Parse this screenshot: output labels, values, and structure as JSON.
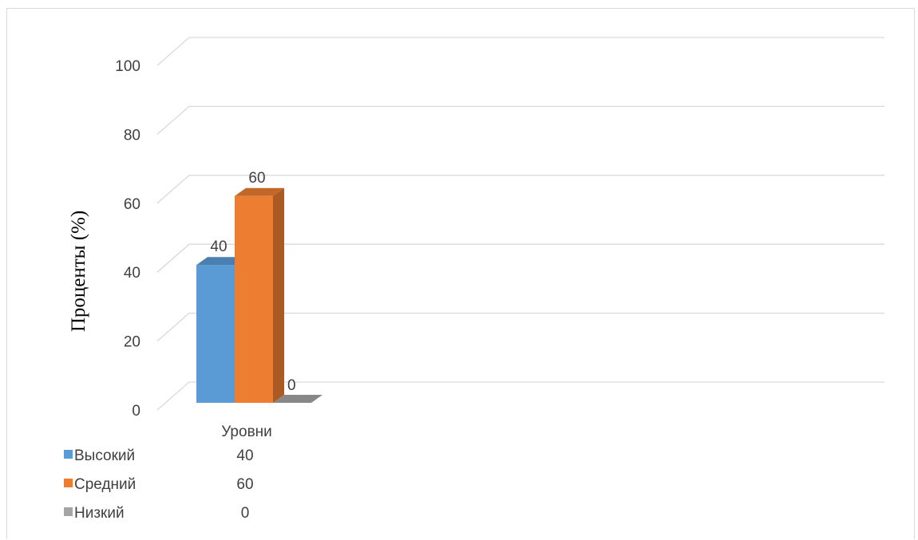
{
  "chart_data": {
    "type": "bar",
    "style": "3d-clustered-column",
    "title": "",
    "xlabel": "Уровни",
    "ylabel": "Проценты (%)",
    "ylim": [
      0,
      100
    ],
    "yticks": [
      0,
      20,
      40,
      60,
      80,
      100
    ],
    "grid": true,
    "categories": [
      "Уровни"
    ],
    "series": [
      {
        "name": "Высокий",
        "values": [
          40
        ],
        "color": "#5b9bd5"
      },
      {
        "name": "Средний",
        "values": [
          60
        ],
        "color": "#ed7d31"
      },
      {
        "name": "Низкий",
        "values": [
          0
        ],
        "color": "#a5a5a5"
      }
    ],
    "data_labels": [
      "40",
      "60",
      "0"
    ],
    "legend": {
      "placement": "bottom-left-data-table",
      "rows": [
        {
          "name": "Высокий",
          "value": "40"
        },
        {
          "name": "Средний",
          "value": "60"
        },
        {
          "name": "Низкий",
          "value": "0"
        }
      ]
    }
  }
}
